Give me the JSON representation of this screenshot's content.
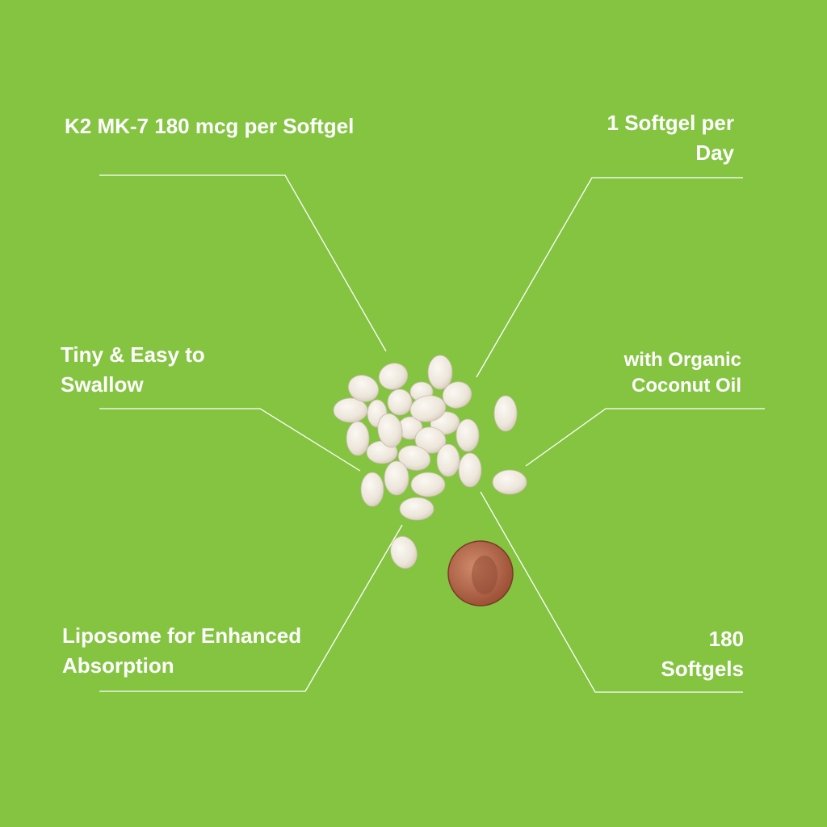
{
  "colors": {
    "background": "#84c441",
    "text": "#ffffff",
    "softgel": "#efe9df",
    "penny": "#b5654a"
  },
  "features": {
    "dose": {
      "lines": [
        "K2 MK-7 180 mcg per Softgel"
      ]
    },
    "daily": {
      "lines": [
        "1 Softgel per",
        "Day"
      ]
    },
    "tiny": {
      "lines": [
        "Tiny & Easy to",
        "Swallow"
      ]
    },
    "coconut": {
      "lines": [
        "with Organic",
        "Coconut Oil"
      ]
    },
    "liposome": {
      "lines": [
        "Liposome for Enhanced",
        "Absorption"
      ]
    },
    "count": {
      "lines": [
        "180",
        "Softgels"
      ]
    }
  }
}
